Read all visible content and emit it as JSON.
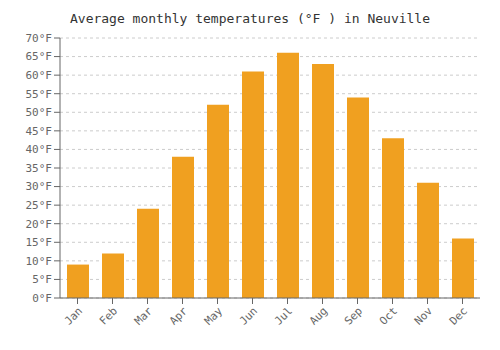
{
  "chart_data": {
    "type": "bar",
    "title": "Average monthly temperatures (°F ) in Neuville",
    "categories": [
      "Jan",
      "Feb",
      "Mar",
      "Apr",
      "May",
      "Jun",
      "Jul",
      "Aug",
      "Sep",
      "Oct",
      "Nov",
      "Dec"
    ],
    "values": [
      9,
      12,
      24,
      38,
      52,
      61,
      66,
      63,
      54,
      43,
      31,
      16
    ],
    "color": "#F0A020",
    "ylim": [
      0,
      70
    ],
    "yticks": [
      {
        "value": 0,
        "label": "0°F"
      },
      {
        "value": 5,
        "label": "5°F"
      },
      {
        "value": 10,
        "label": "10°F"
      },
      {
        "value": 15,
        "label": "15°F"
      },
      {
        "value": 20,
        "label": "20°F"
      },
      {
        "value": 25,
        "label": "25°F"
      },
      {
        "value": 30,
        "label": "30°F"
      },
      {
        "value": 35,
        "label": "35°F"
      },
      {
        "value": 40,
        "label": "40°F"
      },
      {
        "value": 45,
        "label": "45°F"
      },
      {
        "value": 50,
        "label": "50°F"
      },
      {
        "value": 55,
        "label": "55°F"
      },
      {
        "value": 60,
        "label": "60°F"
      },
      {
        "value": 65,
        "label": "65°F"
      },
      {
        "value": 70,
        "label": "70°F"
      }
    ],
    "grid": true
  }
}
